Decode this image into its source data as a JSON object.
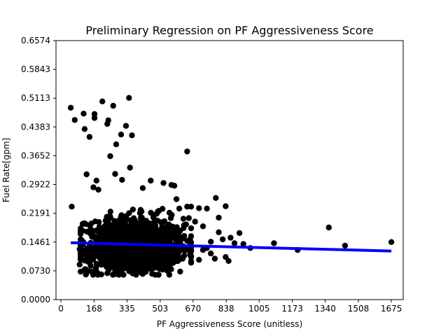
{
  "chart_data": {
    "type": "scatter",
    "title": "Preliminary Regression on PF Aggressiveness Score",
    "xlabel": "PF Aggressiveness Score (unitless)",
    "ylabel": "Fuel Rate[gpm]",
    "xlim": [
      -25,
      1735
    ],
    "ylim": [
      0.0,
      0.6574
    ],
    "xticks": [
      0,
      168,
      335,
      503,
      670,
      838,
      1005,
      1173,
      1340,
      1508,
      1675
    ],
    "xtick_labels": [
      "0",
      "168",
      "335",
      "503",
      "670",
      "838",
      "1005",
      "1173",
      "1340",
      "1508",
      "1675"
    ],
    "yticks": [
      0.0,
      0.073,
      0.1461,
      0.2191,
      0.2922,
      0.3652,
      0.4383,
      0.5113,
      0.5843,
      0.6574
    ],
    "ytick_labels": [
      "0.0000",
      "0.0730",
      "0.1461",
      "0.2191",
      "0.2922",
      "0.3652",
      "0.4383",
      "0.5113",
      "0.5843",
      "0.6574"
    ],
    "grid": false,
    "colors": {
      "points": "#000000",
      "regression": "#0000ff"
    },
    "regression_line": {
      "x": [
        50,
        1675
      ],
      "y": [
        0.1443,
        0.1233
      ]
    },
    "dense_cluster": {
      "x_range": [
        100,
        660
      ],
      "x_center": 380,
      "y_range": [
        0.063,
        0.255
      ],
      "y_center": 0.128,
      "approx_points": 1400
    },
    "scatter_points": [
      [
        50,
        0.487
      ],
      [
        70,
        0.456
      ],
      [
        115,
        0.472
      ],
      [
        120,
        0.433
      ],
      [
        145,
        0.413
      ],
      [
        170,
        0.471
      ],
      [
        170,
        0.461
      ],
      [
        210,
        0.503
      ],
      [
        235,
        0.446
      ],
      [
        240,
        0.455
      ],
      [
        265,
        0.492
      ],
      [
        305,
        0.419
      ],
      [
        345,
        0.512
      ],
      [
        330,
        0.441
      ],
      [
        360,
        0.417
      ],
      [
        280,
        0.394
      ],
      [
        250,
        0.364
      ],
      [
        350,
        0.335
      ],
      [
        130,
        0.318
      ],
      [
        275,
        0.319
      ],
      [
        180,
        0.302
      ],
      [
        310,
        0.304
      ],
      [
        640,
        0.376
      ],
      [
        55,
        0.236
      ],
      [
        520,
        0.296
      ],
      [
        575,
        0.289
      ],
      [
        165,
        0.285
      ],
      [
        190,
        0.279
      ],
      [
        415,
        0.283
      ],
      [
        455,
        0.302
      ],
      [
        560,
        0.291
      ],
      [
        785,
        0.258
      ],
      [
        835,
        0.237
      ],
      [
        700,
        0.232
      ],
      [
        740,
        0.231
      ],
      [
        640,
        0.236
      ],
      [
        660,
        0.236
      ],
      [
        600,
        0.231
      ],
      [
        800,
        0.208
      ],
      [
        680,
        0.198
      ],
      [
        720,
        0.186
      ],
      [
        800,
        0.171
      ],
      [
        905,
        0.169
      ],
      [
        860,
        0.157
      ],
      [
        820,
        0.153
      ],
      [
        880,
        0.143
      ],
      [
        760,
        0.147
      ],
      [
        925,
        0.141
      ],
      [
        960,
        0.131
      ],
      [
        1080,
        0.143
      ],
      [
        1200,
        0.126
      ],
      [
        1358,
        0.183
      ],
      [
        1440,
        0.137
      ],
      [
        1675,
        0.146
      ],
      [
        110,
        0.192
      ],
      [
        95,
        0.128
      ],
      [
        100,
        0.124
      ],
      [
        95,
        0.089
      ],
      [
        125,
        0.077
      ],
      [
        140,
        0.072
      ],
      [
        170,
        0.069
      ],
      [
        205,
        0.064
      ],
      [
        235,
        0.067
      ],
      [
        850,
        0.098
      ],
      [
        835,
        0.108
      ],
      [
        780,
        0.104
      ],
      [
        760,
        0.117
      ],
      [
        700,
        0.101
      ],
      [
        720,
        0.126
      ],
      [
        740,
        0.131
      ]
    ]
  }
}
